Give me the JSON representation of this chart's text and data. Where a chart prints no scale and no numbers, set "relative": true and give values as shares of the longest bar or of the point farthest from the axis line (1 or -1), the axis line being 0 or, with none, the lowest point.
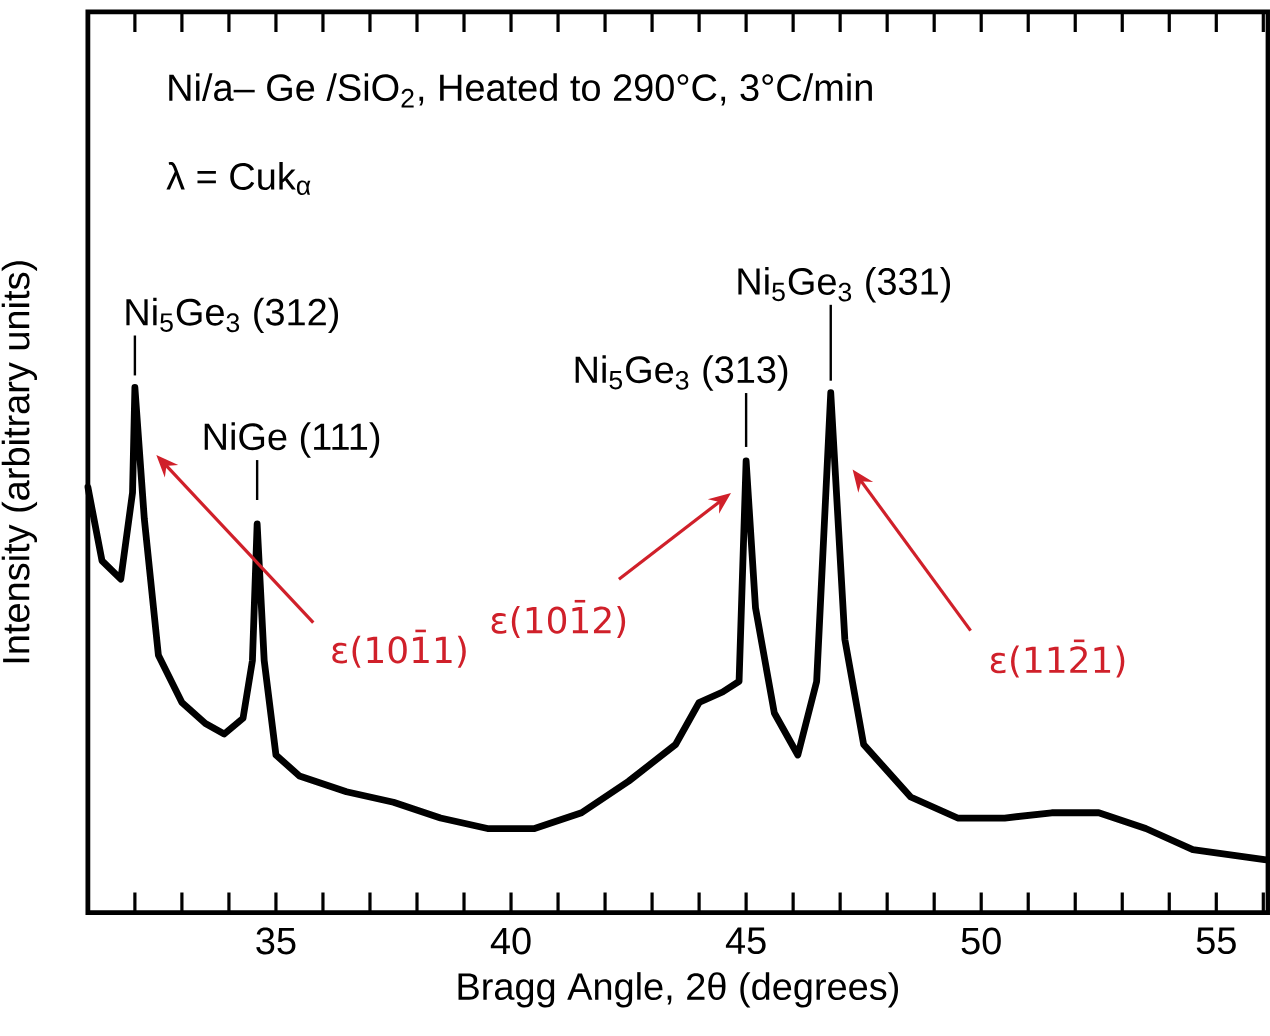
{
  "chart_data": {
    "type": "line",
    "title": "Ni/a– Ge /SiO$_{2}$, Heated to 290°C, 3°C/min",
    "subtitle": "λ = Cuk$_{α}$",
    "xlabel": "Bragg Angle, 2θ    (degrees)",
    "ylabel": "Intensity    (arbitrary units)",
    "relative": true,
    "x": [
      31.0,
      31.3,
      31.7,
      31.95,
      32.0,
      32.2,
      32.5,
      33.0,
      33.5,
      33.9,
      34.3,
      34.5,
      34.6,
      34.75,
      35.0,
      35.5,
      36.5,
      37.5,
      38.5,
      39.5,
      40.5,
      41.5,
      42.5,
      43.5,
      44.0,
      44.5,
      44.85,
      45.0,
      45.2,
      45.6,
      46.1,
      46.5,
      46.8,
      47.1,
      47.5,
      48.5,
      49.5,
      50.5,
      51.5,
      52.5,
      53.5,
      54.5,
      56.1
    ],
    "series": [
      {
        "color": "#000000",
        "values": [
          0.81,
          0.67,
          0.635,
          0.8,
          1.0,
          0.75,
          0.49,
          0.4,
          0.36,
          0.34,
          0.37,
          0.48,
          0.74,
          0.48,
          0.3,
          0.26,
          0.23,
          0.21,
          0.18,
          0.16,
          0.16,
          0.19,
          0.25,
          0.32,
          0.4,
          0.42,
          0.44,
          0.86,
          0.58,
          0.38,
          0.3,
          0.44,
          0.99,
          0.52,
          0.32,
          0.22,
          0.18,
          0.18,
          0.19,
          0.19,
          0.16,
          0.12,
          0.1
        ]
      }
    ],
    "xlim": [
      31.0,
      56.1
    ],
    "xticks": [
      {
        "value": 31,
        "label": null
      },
      {
        "value": 32,
        "label": null
      },
      {
        "value": 33,
        "label": null
      },
      {
        "value": 34,
        "label": null
      },
      35,
      {
        "value": 36,
        "label": null
      },
      {
        "value": 37,
        "label": null
      },
      {
        "value": 38,
        "label": null
      },
      {
        "value": 39,
        "label": null
      },
      40,
      {
        "value": 41,
        "label": null
      },
      {
        "value": 42,
        "label": null
      },
      {
        "value": 43,
        "label": null
      },
      {
        "value": 44,
        "label": null
      },
      45,
      {
        "value": 46,
        "label": null
      },
      {
        "value": 47,
        "label": null
      },
      {
        "value": 48,
        "label": null
      },
      {
        "value": 49,
        "label": null
      },
      50,
      {
        "value": 51,
        "label": null
      },
      {
        "value": 52,
        "label": null
      },
      {
        "value": 53,
        "label": null
      },
      {
        "value": 54,
        "label": null
      },
      55,
      {
        "value": 56,
        "label": null
      }
    ],
    "annotations": [
      {
        "text": "Ni$_{5}$Ge$_{3}$ (312)",
        "x": 32.0,
        "y": 1.0
      },
      {
        "text": "NiGe (111)",
        "x": 34.6,
        "y": 0.74
      },
      {
        "text": "Ni$_{5}$Ge$_{3}$ (313)",
        "x": 45.0,
        "y": 0.86
      },
      {
        "text": "Ni$_{5}$Ge$_{3}$ (331)",
        "x": 46.8,
        "y": 0.99
      },
      "ε(101̄1)",
      "ε(101̄2)",
      "ε(112̄1)"
    ],
    "line_style": "solid",
    "marker": "none",
    "grid": false
  }
}
